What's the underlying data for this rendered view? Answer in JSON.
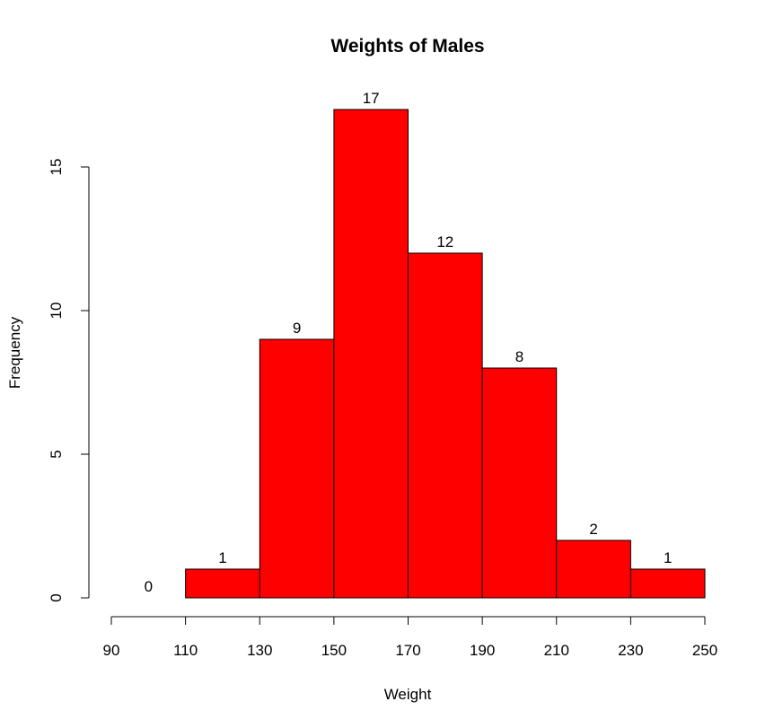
{
  "chart_data": {
    "type": "bar",
    "title": "Weights of Males",
    "xlabel": "Weight",
    "ylabel": "Frequency",
    "bins": [
      {
        "start": 90,
        "end": 110,
        "count": 0
      },
      {
        "start": 110,
        "end": 130,
        "count": 1
      },
      {
        "start": 130,
        "end": 150,
        "count": 9
      },
      {
        "start": 150,
        "end": 170,
        "count": 17
      },
      {
        "start": 170,
        "end": 190,
        "count": 12
      },
      {
        "start": 190,
        "end": 210,
        "count": 8
      },
      {
        "start": 210,
        "end": 230,
        "count": 2
      },
      {
        "start": 230,
        "end": 250,
        "count": 1
      }
    ],
    "x_ticks": [
      90,
      110,
      130,
      150,
      170,
      190,
      210,
      230,
      250
    ],
    "y_ticks": [
      0,
      5,
      10,
      15
    ],
    "xlim": [
      90,
      250
    ],
    "ylim": [
      0,
      17
    ],
    "bar_color": "#ff0000",
    "bar_border_color": "#000000",
    "grid": false,
    "legend": "none"
  }
}
